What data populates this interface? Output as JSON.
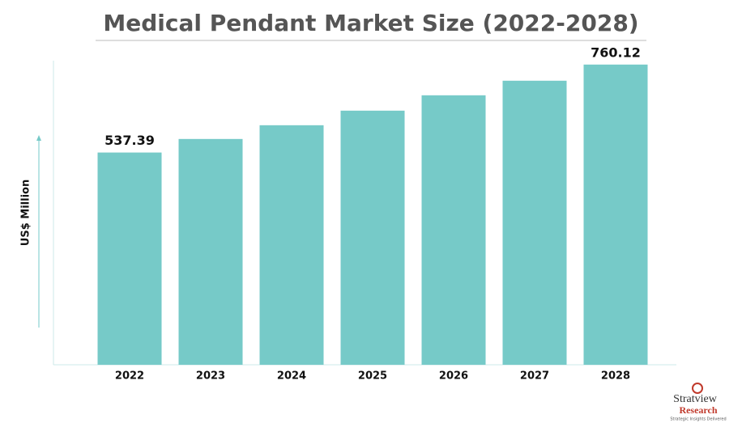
{
  "chart_data": {
    "type": "bar",
    "title": "Medical Pendant Market Size (2022-2028)",
    "y_label": "US$ Million",
    "categories": [
      "2022",
      "2023",
      "2024",
      "2025",
      "2026",
      "2027",
      "2028"
    ],
    "values": [
      537.39,
      571.7,
      606.5,
      643.4,
      682.3,
      719.2,
      760.12
    ],
    "value_labels": [
      "537.39",
      null,
      null,
      null,
      null,
      null,
      "760.12"
    ],
    "color": "#76cac8",
    "ylim": [
      0,
      770
    ]
  },
  "logo": {
    "name_top": "Stratview",
    "name_bottom": "Research",
    "tagline": "Strategic Insights Delivered"
  }
}
